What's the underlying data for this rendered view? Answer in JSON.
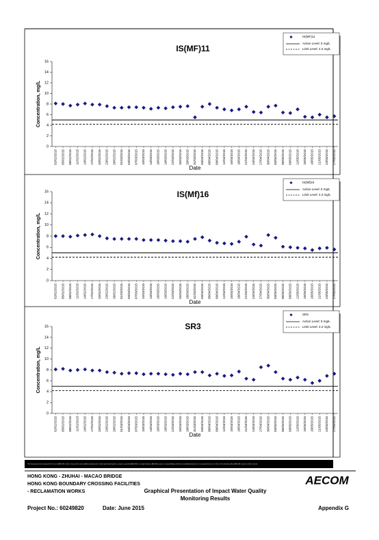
{
  "chart_data": [
    {
      "type": "scatter",
      "title": "IS(MF)11",
      "x_label": "Date",
      "y_label": "Concentration, mg/L",
      "categories": [
        "02/02/2015",
        "05/02/2015",
        "08/02/2015",
        "11/02/2015",
        "14/02/2015",
        "17/02/2015",
        "20/02/2015",
        "23/02/2015",
        "26/02/2015",
        "01/03/2015",
        "04/03/2015",
        "07/03/2015",
        "10/03/2015",
        "13/03/2015",
        "16/03/2015",
        "19/03/2015",
        "22/03/2015",
        "25/03/2015",
        "28/03/2015",
        "31/03/2015",
        "03/04/2015",
        "06/04/2015",
        "09/04/2015",
        "12/04/2015",
        "15/04/2015",
        "18/04/2015",
        "21/04/2015",
        "24/04/2015",
        "27/04/2015",
        "30/04/2015",
        "03/05/2015",
        "06/05/2015",
        "09/05/2015",
        "12/05/2015",
        "15/05/2015",
        "18/05/2015",
        "21/05/2015",
        "24/05/2015",
        "27/05/2015"
      ],
      "series": [
        {
          "name": "IS(MF)11",
          "color": "#1a1a80",
          "values": [
            8.1,
            8.0,
            7.7,
            7.9,
            8.1,
            7.9,
            7.9,
            7.6,
            7.3,
            7.3,
            7.4,
            7.4,
            7.3,
            7.1,
            7.3,
            7.2,
            7.4,
            7.5,
            7.6,
            5.5,
            7.5,
            8.0,
            7.3,
            7.0,
            6.8,
            7.0,
            7.5,
            6.5,
            6.4,
            7.5,
            7.7,
            6.4,
            6.3,
            7.0,
            5.6,
            5.5,
            6.0,
            5.5,
            5.7
          ]
        }
      ],
      "reference_lines": [
        {
          "name": "Action Level: 5 mg/L",
          "value": 5,
          "style": "solid"
        },
        {
          "name": "Limit Level: 4.2 mg/L",
          "value": 4.2,
          "style": "dashed"
        }
      ],
      "ylim": [
        0,
        16
      ],
      "yticks": [
        0,
        2,
        4,
        6,
        8,
        10,
        12,
        14,
        16
      ]
    },
    {
      "type": "scatter",
      "title": "IS(Mf)16",
      "x_label": "Date",
      "y_label": "Concentration, mg/L",
      "categories": [
        "02/02/2015",
        "05/02/2015",
        "08/02/2015",
        "11/02/2015",
        "14/02/2015",
        "17/02/2015",
        "20/02/2015",
        "23/02/2015",
        "26/02/2015",
        "01/03/2015",
        "04/03/2015",
        "07/03/2015",
        "10/03/2015",
        "13/03/2015",
        "16/03/2015",
        "19/03/2015",
        "22/03/2015",
        "25/03/2015",
        "28/03/2015",
        "31/03/2015",
        "03/04/2015",
        "06/04/2015",
        "09/04/2015",
        "12/04/2015",
        "15/04/2015",
        "18/04/2015",
        "21/04/2015",
        "24/04/2015",
        "27/04/2015",
        "30/04/2015",
        "03/05/2015",
        "06/05/2015",
        "09/05/2015",
        "12/05/2015",
        "15/05/2015",
        "18/05/2015",
        "21/05/2015",
        "24/05/2015",
        "27/05/2015"
      ],
      "series": [
        {
          "name": "IS(Mf)16",
          "color": "#1a1a80",
          "values": [
            8.0,
            8.0,
            7.9,
            8.1,
            8.2,
            8.3,
            8.0,
            7.6,
            7.5,
            7.5,
            7.5,
            7.5,
            7.3,
            7.3,
            7.3,
            7.2,
            7.1,
            7.1,
            7.0,
            7.5,
            7.8,
            7.2,
            6.8,
            6.7,
            6.6,
            7.0,
            7.9,
            6.5,
            6.3,
            8.2,
            7.7,
            6.1,
            6.0,
            5.9,
            5.8,
            5.5,
            5.8,
            5.9,
            5.6
          ]
        }
      ],
      "reference_lines": [
        {
          "name": "Action Level: 5 mg/L",
          "value": 5,
          "style": "solid"
        },
        {
          "name": "Limit Level: 4.2 mg/L",
          "value": 4.2,
          "style": "dashed"
        }
      ],
      "ylim": [
        0,
        16
      ],
      "yticks": [
        0,
        2,
        4,
        6,
        8,
        10,
        12,
        14,
        16
      ]
    },
    {
      "type": "scatter",
      "title": "SR3",
      "x_label": "Date",
      "y_label": "Concentration, mg/L",
      "categories": [
        "02/02/2015",
        "05/02/2015",
        "08/02/2015",
        "11/02/2015",
        "14/02/2015",
        "17/02/2015",
        "20/02/2015",
        "23/02/2015",
        "26/02/2015",
        "01/03/2015",
        "04/03/2015",
        "07/03/2015",
        "10/03/2015",
        "13/03/2015",
        "16/03/2015",
        "19/03/2015",
        "22/03/2015",
        "25/03/2015",
        "28/03/2015",
        "31/03/2015",
        "03/04/2015",
        "06/04/2015",
        "09/04/2015",
        "12/04/2015",
        "15/04/2015",
        "18/04/2015",
        "21/04/2015",
        "24/04/2015",
        "27/04/2015",
        "30/04/2015",
        "03/05/2015",
        "06/05/2015",
        "09/05/2015",
        "12/05/2015",
        "15/05/2015",
        "18/05/2015",
        "21/05/2015",
        "24/05/2015",
        "27/05/2015"
      ],
      "series": [
        {
          "name": "SR3",
          "color": "#1a1a80",
          "values": [
            8.1,
            8.2,
            7.9,
            8.0,
            8.1,
            7.9,
            7.9,
            7.6,
            7.5,
            7.3,
            7.4,
            7.4,
            7.2,
            7.3,
            7.3,
            7.2,
            7.1,
            7.3,
            7.2,
            7.6,
            7.6,
            7.0,
            7.3,
            6.9,
            7.0,
            7.7,
            6.4,
            6.2,
            8.5,
            8.8,
            7.6,
            6.4,
            6.2,
            6.6,
            6.2,
            5.6,
            6.0,
            6.9,
            7.3
          ]
        }
      ],
      "reference_lines": [
        {
          "name": "Action Level: 5 mg/L",
          "value": 5,
          "style": "solid"
        },
        {
          "name": "Limit Level: 4.2 mg/L",
          "value": 4.2,
          "style": "dashed"
        }
      ],
      "ylim": [
        0,
        16
      ],
      "yticks": [
        0,
        2,
        4,
        6,
        8,
        10,
        12,
        14,
        16
      ]
    }
  ],
  "footer": {
    "disclaimer": "This Drawing has been prepared for the use of AECOM's client. It may not be used, modified, reproduced or relied upon by third parties, except as agreed by AECOM or as required by law. AECOM accepts no responsibility, and denies any liability whatsoever, to any party that uses or relies on this drawing without AECOM's express written consent.",
    "project_line1": "HONG KONG - ZHUHAI - MACAO BRIDGE",
    "project_line2": "HONG KONG BOUNDARY CROSSING FACILITIES",
    "project_line3": "- RECLAMATION WORKS",
    "logo": "AECOM",
    "title_line1": "Graphical Presentation of Impact Water Quality",
    "title_line2": "Monitoring Results",
    "project_no": "Project No.: 60249820",
    "date": "Date: June 2015",
    "appendix": "Appendix G"
  }
}
